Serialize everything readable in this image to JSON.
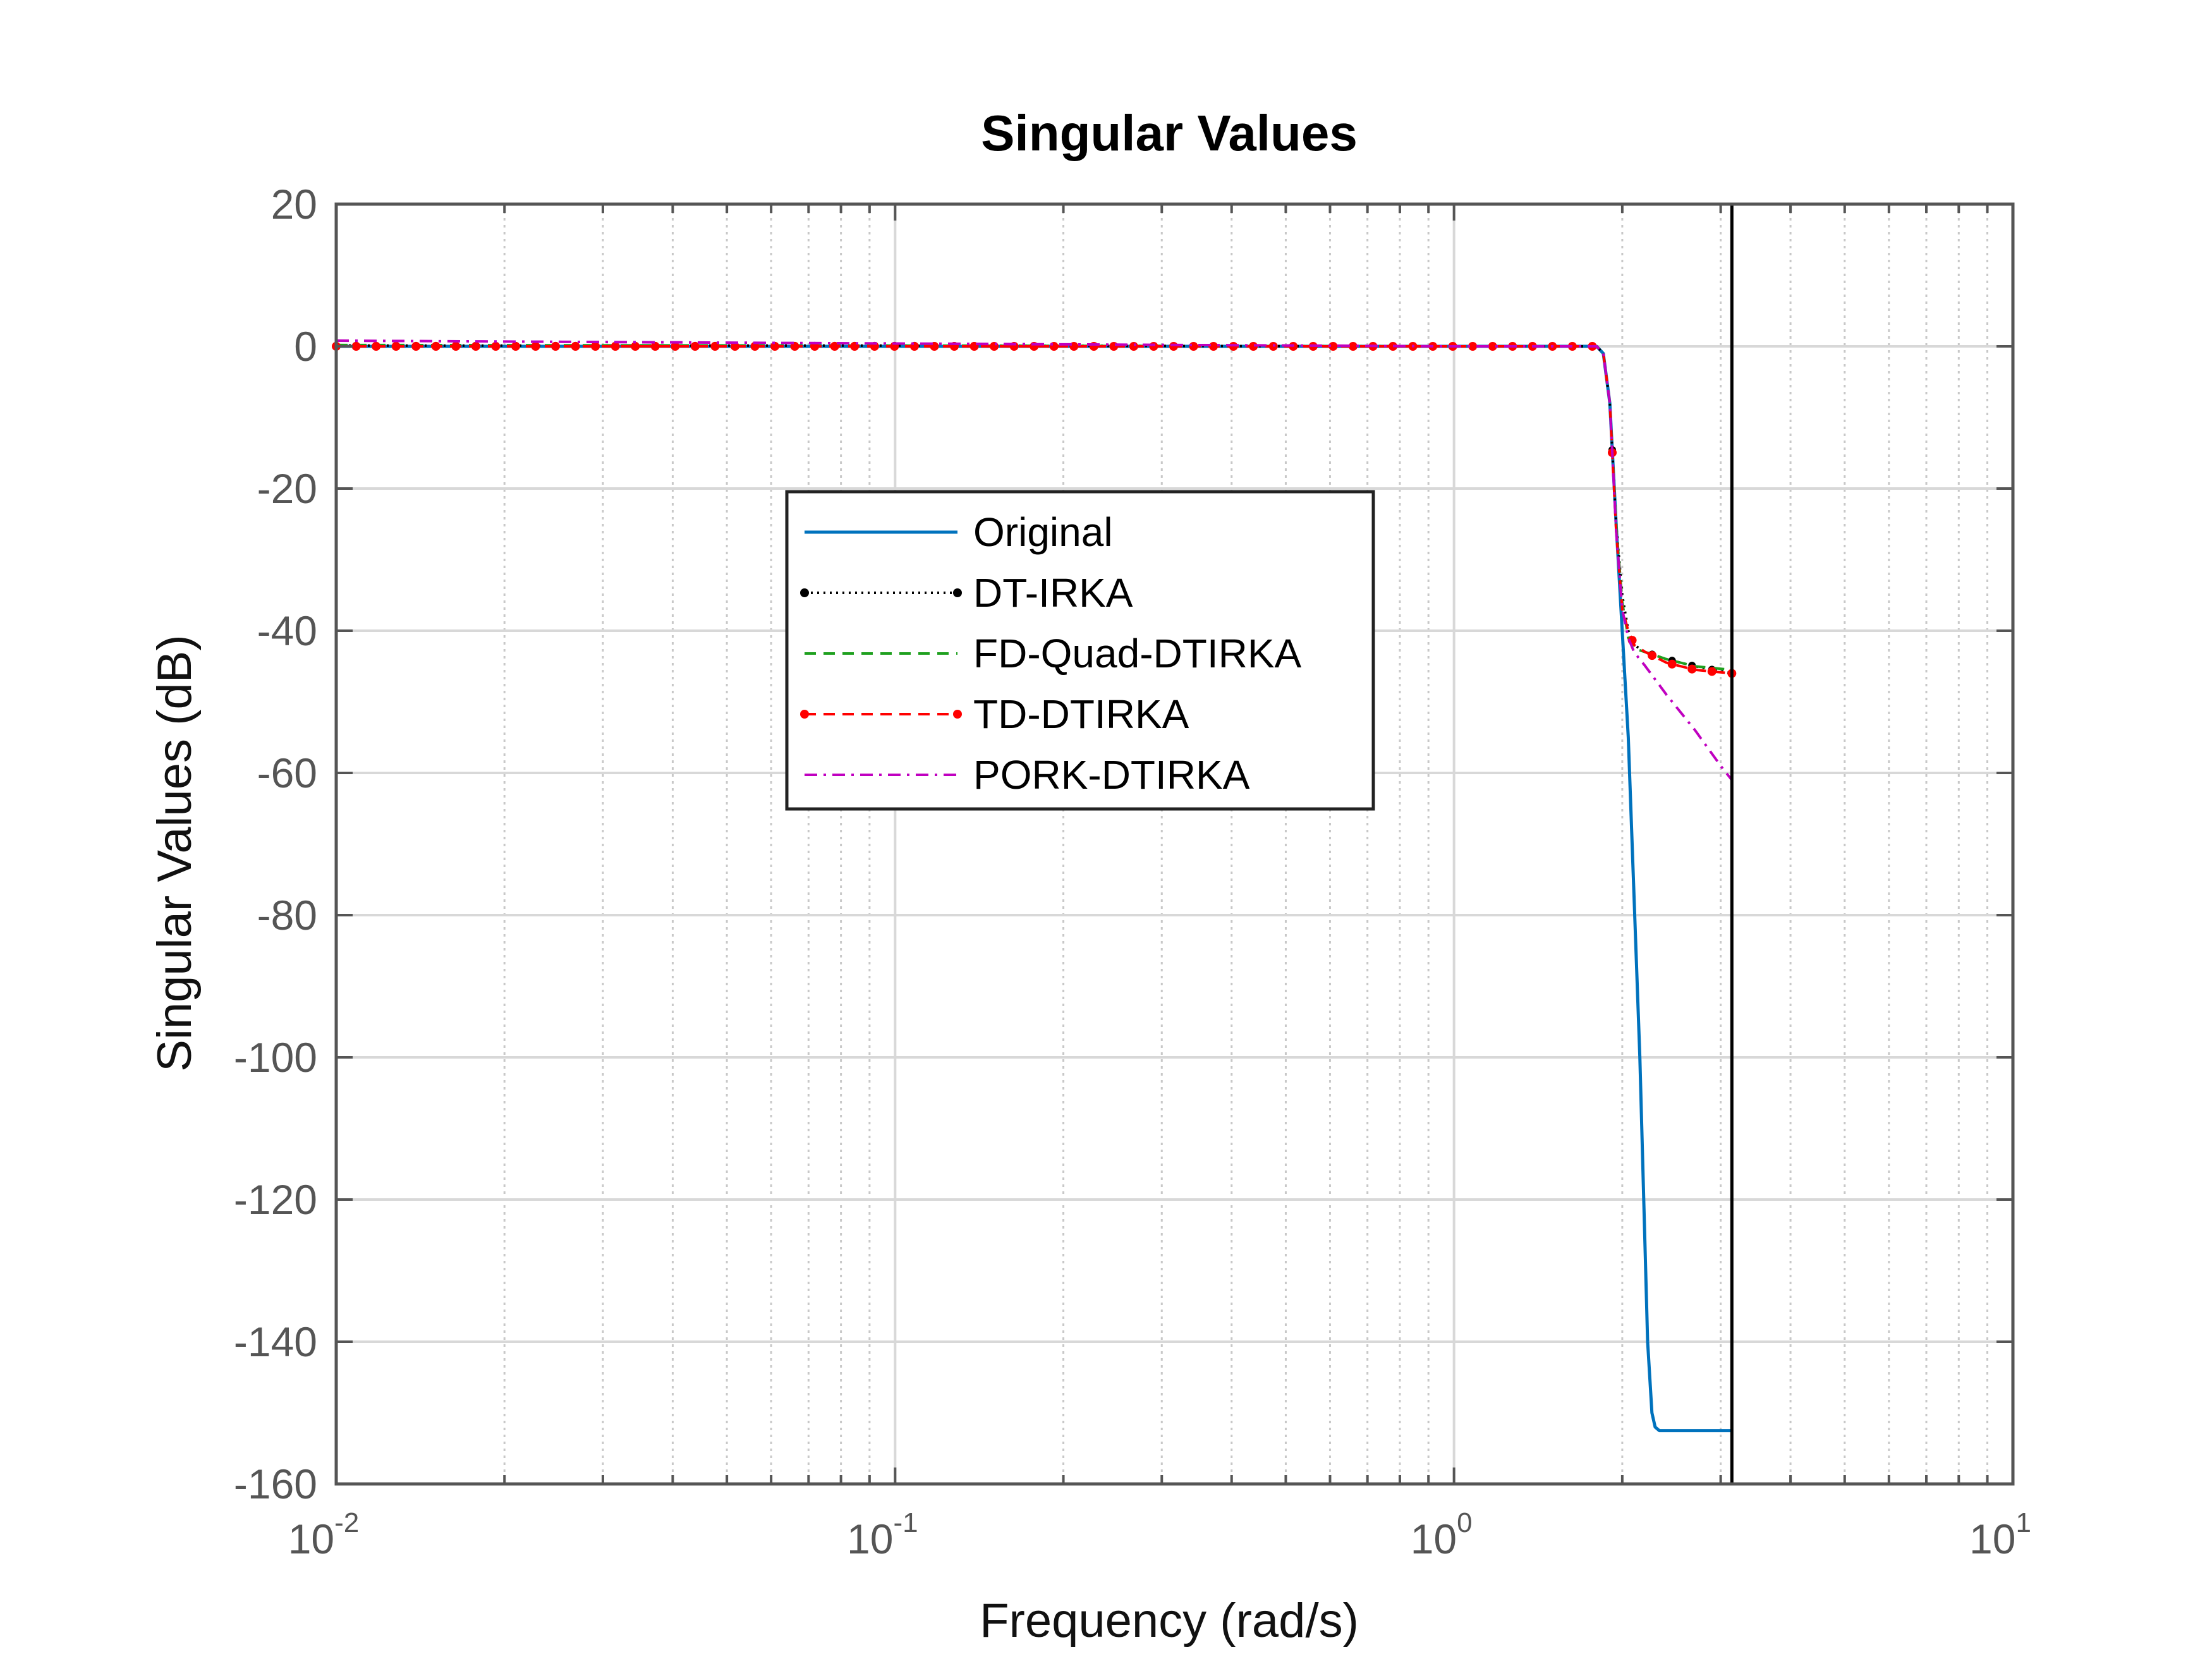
{
  "chart_data": {
    "type": "line",
    "title": "Singular Values",
    "xlabel": "Frequency (rad/s)",
    "ylabel": "Singular Values (dB)",
    "xscale": "log",
    "xlim": [
      0.01,
      10
    ],
    "ylim": [
      -160,
      20
    ],
    "x_ticks": [
      {
        "base": "10",
        "exp": "-2"
      },
      {
        "base": "10",
        "exp": "-1"
      },
      {
        "base": "10",
        "exp": "0"
      },
      {
        "base": "10",
        "exp": "1"
      }
    ],
    "y_ticks": [
      "20",
      "0",
      "-20",
      "-40",
      "-60",
      "-80",
      "-100",
      "-120",
      "-140",
      "-160"
    ],
    "grid": true,
    "nyquist_line_x": 3.1416,
    "legend_position": "center-left",
    "series": [
      {
        "name": "Original",
        "color": "#0072BD",
        "style": "solid",
        "x": [
          0.01,
          0.1,
          1.0,
          1.8,
          1.85,
          1.9,
          1.95,
          2.05,
          2.15,
          2.22,
          2.26,
          2.29,
          2.33,
          2.5,
          3.1416
        ],
        "y": [
          0,
          0,
          0,
          0,
          -1,
          -8,
          -25,
          -55,
          -100,
          -140,
          -150,
          -152,
          -152.5,
          -152.5,
          -152.5
        ]
      },
      {
        "name": "DT-IRKA",
        "color": "#000000",
        "style": "dotted-marker",
        "x": [
          0.01,
          0.1,
          1.0,
          1.8,
          1.85,
          1.9,
          1.95,
          2.0,
          2.05,
          2.1,
          2.2,
          2.4,
          2.7,
          3.1416
        ],
        "y": [
          0.1,
          0.1,
          0,
          0,
          -1,
          -8,
          -25,
          -35,
          -40,
          -42,
          -43,
          -44,
          -45,
          -46
        ]
      },
      {
        "name": "FD-Quad-DTIRKA",
        "color": "#1FA01F",
        "style": "dashed",
        "x": [
          0.01,
          0.1,
          1.0,
          1.8,
          1.85,
          1.9,
          1.95,
          2.0,
          2.05,
          2.1,
          2.2,
          2.4,
          2.7,
          3.1416
        ],
        "y": [
          0.2,
          0.1,
          0,
          0,
          -1,
          -8,
          -25,
          -36,
          -41,
          -42.5,
          -43,
          -44,
          -45,
          -45.5
        ]
      },
      {
        "name": "TD-DTIRKA",
        "color": "#FF0000",
        "style": "dashed-marker",
        "x": [
          0.01,
          0.1,
          1.0,
          1.8,
          1.85,
          1.9,
          1.95,
          2.0,
          2.05,
          2.1,
          2.2,
          2.4,
          2.7,
          3.1416
        ],
        "y": [
          0,
          0,
          0,
          0,
          -1,
          -8,
          -26,
          -37,
          -40,
          -42,
          -43,
          -44.5,
          -45.5,
          -46
        ]
      },
      {
        "name": "PORK-DTIRKA",
        "color": "#C000C0",
        "style": "dashdot",
        "x": [
          0.01,
          0.1,
          1.0,
          1.8,
          1.85,
          1.9,
          1.95,
          2.0,
          2.05,
          2.1,
          2.2,
          2.4,
          2.7,
          3.0,
          3.1416
        ],
        "y": [
          0.8,
          0.4,
          0,
          0,
          -1,
          -8,
          -26,
          -37,
          -41,
          -43,
          -45,
          -49,
          -54,
          -59,
          -61
        ]
      }
    ]
  }
}
